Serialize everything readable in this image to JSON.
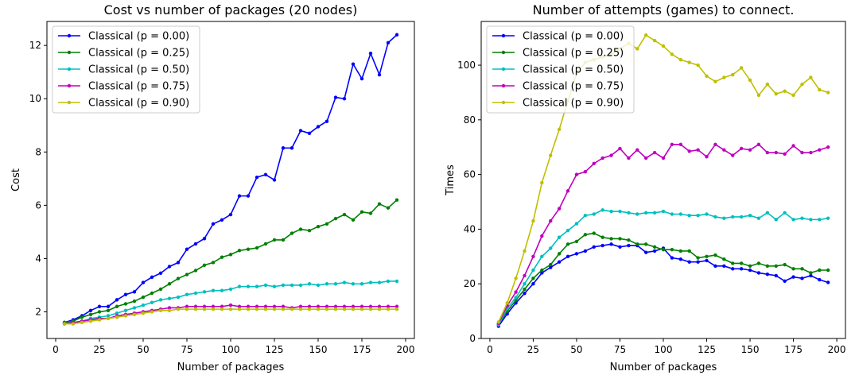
{
  "chart_data": [
    {
      "type": "line",
      "title": "Cost vs number of packages (20 nodes)",
      "xlabel": "Number of packages",
      "ylabel": "Cost",
      "xlim": [
        -5,
        205
      ],
      "ylim": [
        1.0,
        12.9
      ],
      "xticks": [
        0,
        25,
        50,
        75,
        100,
        125,
        150,
        175,
        200
      ],
      "yticks": [
        2,
        4,
        6,
        8,
        10,
        12
      ],
      "grid": false,
      "legend": "top-left",
      "x": [
        5,
        10,
        15,
        20,
        25,
        30,
        35,
        40,
        45,
        50,
        55,
        60,
        65,
        70,
        75,
        80,
        85,
        90,
        95,
        100,
        105,
        110,
        115,
        120,
        125,
        130,
        135,
        140,
        145,
        150,
        155,
        160,
        165,
        170,
        175,
        180,
        185,
        190,
        195
      ],
      "series": [
        {
          "name": "Classical (p = 0.00)",
          "color": "#0000ff",
          "values": [
            1.6,
            1.7,
            1.85,
            2.05,
            2.2,
            2.2,
            2.45,
            2.65,
            2.75,
            3.1,
            3.3,
            3.45,
            3.7,
            3.85,
            4.35,
            4.55,
            4.75,
            5.3,
            5.45,
            5.65,
            6.35,
            6.35,
            7.05,
            7.15,
            6.95,
            8.15,
            8.15,
            8.8,
            8.7,
            8.95,
            9.15,
            10.05,
            10.0,
            11.3,
            10.75,
            11.7,
            10.9,
            12.1,
            12.4
          ]
        },
        {
          "name": "Classical (p = 0.25)",
          "color": "#008000",
          "values": [
            1.6,
            1.65,
            1.8,
            1.9,
            2.0,
            2.05,
            2.2,
            2.3,
            2.4,
            2.55,
            2.7,
            2.85,
            3.05,
            3.25,
            3.4,
            3.55,
            3.75,
            3.85,
            4.05,
            4.15,
            4.3,
            4.35,
            4.4,
            4.55,
            4.7,
            4.7,
            4.95,
            5.1,
            5.05,
            5.2,
            5.3,
            5.5,
            5.65,
            5.45,
            5.75,
            5.7,
            6.05,
            5.9,
            6.2
          ]
        },
        {
          "name": "Classical (p = 0.50)",
          "color": "#00bfbf",
          "values": [
            1.55,
            1.6,
            1.65,
            1.75,
            1.8,
            1.85,
            1.95,
            2.05,
            2.15,
            2.25,
            2.35,
            2.45,
            2.5,
            2.55,
            2.65,
            2.7,
            2.75,
            2.8,
            2.8,
            2.85,
            2.95,
            2.95,
            2.95,
            3.0,
            2.95,
            3.0,
            3.0,
            3.0,
            3.05,
            3.0,
            3.05,
            3.05,
            3.1,
            3.05,
            3.05,
            3.1,
            3.1,
            3.15,
            3.15
          ]
        },
        {
          "name": "Classical (p = 0.75)",
          "color": "#bf00bf",
          "values": [
            1.55,
            1.6,
            1.65,
            1.7,
            1.75,
            1.75,
            1.85,
            1.9,
            1.95,
            2.0,
            2.05,
            2.1,
            2.15,
            2.15,
            2.2,
            2.2,
            2.2,
            2.2,
            2.2,
            2.25,
            2.2,
            2.2,
            2.2,
            2.2,
            2.2,
            2.2,
            2.15,
            2.2,
            2.2,
            2.2,
            2.2,
            2.2,
            2.2,
            2.2,
            2.2,
            2.2,
            2.2,
            2.2,
            2.2
          ]
        },
        {
          "name": "Classical (p = 0.90)",
          "color": "#bfbf00",
          "values": [
            1.55,
            1.55,
            1.6,
            1.65,
            1.7,
            1.75,
            1.8,
            1.85,
            1.9,
            1.95,
            2.0,
            2.05,
            2.05,
            2.1,
            2.1,
            2.1,
            2.1,
            2.1,
            2.1,
            2.1,
            2.1,
            2.1,
            2.1,
            2.1,
            2.1,
            2.1,
            2.1,
            2.1,
            2.1,
            2.1,
            2.1,
            2.1,
            2.1,
            2.1,
            2.1,
            2.1,
            2.1,
            2.1,
            2.1
          ]
        }
      ]
    },
    {
      "type": "line",
      "title": "Number of attempts (games) to connect.",
      "xlabel": "Number of packages",
      "ylabel": "Times",
      "xlim": [
        -5,
        205
      ],
      "ylim": [
        0,
        116
      ],
      "xticks": [
        0,
        25,
        50,
        75,
        100,
        125,
        150,
        175,
        200
      ],
      "yticks": [
        0,
        20,
        40,
        60,
        80,
        100
      ],
      "grid": false,
      "legend": "top-left",
      "x": [
        5,
        10,
        15,
        20,
        25,
        30,
        35,
        40,
        45,
        50,
        55,
        60,
        65,
        70,
        75,
        80,
        85,
        90,
        95,
        100,
        105,
        110,
        115,
        120,
        125,
        130,
        135,
        140,
        145,
        150,
        155,
        160,
        165,
        170,
        175,
        180,
        185,
        190,
        195
      ],
      "series": [
        {
          "name": "Classical (p = 0.00)",
          "color": "#0000ff",
          "values": [
            4.5,
            9,
            13,
            16.5,
            20,
            24,
            26,
            28,
            30,
            31,
            32,
            33.5,
            34,
            34.5,
            33.5,
            34,
            34,
            31.5,
            32,
            33,
            29.5,
            29,
            28,
            28,
            28.5,
            26.5,
            26.5,
            25.5,
            25.5,
            25,
            24,
            23.5,
            23,
            21,
            22.5,
            22,
            23,
            21.5,
            20.5
          ]
        },
        {
          "name": "Classical (p = 0.25)",
          "color": "#008000",
          "values": [
            5,
            10,
            14,
            18,
            22,
            25,
            27,
            31,
            34.5,
            35.5,
            38,
            38.5,
            37,
            36.5,
            36.5,
            36,
            34.5,
            34.5,
            33.5,
            32.5,
            32.5,
            32,
            32,
            29.5,
            30,
            30.5,
            29,
            27.5,
            27.5,
            26.5,
            27.5,
            26.5,
            26.5,
            27,
            25.5,
            25.5,
            24,
            25,
            25
          ]
        },
        {
          "name": "Classical (p = 0.50)",
          "color": "#00bfbf",
          "values": [
            5,
            11,
            15,
            20,
            25,
            30,
            33,
            37,
            39.5,
            42,
            45,
            45.5,
            47,
            46.5,
            46.5,
            46,
            45.5,
            46,
            46,
            46.5,
            45.5,
            45.5,
            45,
            45,
            45.5,
            44.5,
            44,
            44.5,
            44.5,
            45,
            44,
            46,
            43.5,
            46,
            43.5,
            44,
            43.5,
            43.5,
            44
          ]
        },
        {
          "name": "Classical (p = 0.75)",
          "color": "#bf00bf",
          "values": [
            5.5,
            12,
            17,
            23,
            30,
            37.5,
            43,
            47.5,
            54,
            60,
            61,
            64,
            66,
            67,
            69.5,
            66,
            69,
            66,
            68,
            66,
            71,
            71,
            68.5,
            69,
            66.5,
            71,
            69,
            67,
            69.5,
            69,
            71,
            68,
            68,
            67.5,
            70.5,
            68,
            68,
            69,
            70
          ]
        },
        {
          "name": "Classical (p = 0.90)",
          "color": "#bfbf00",
          "values": [
            6,
            13,
            22,
            32,
            43,
            57,
            67,
            76.5,
            87,
            97,
            101,
            102,
            103,
            104,
            106,
            108,
            106,
            111,
            109,
            107,
            104,
            102,
            101,
            100,
            96,
            94,
            95.5,
            96.5,
            99,
            94.5,
            89,
            93,
            89.5,
            90.5,
            89,
            93,
            95.5,
            91,
            90
          ]
        }
      ]
    }
  ]
}
